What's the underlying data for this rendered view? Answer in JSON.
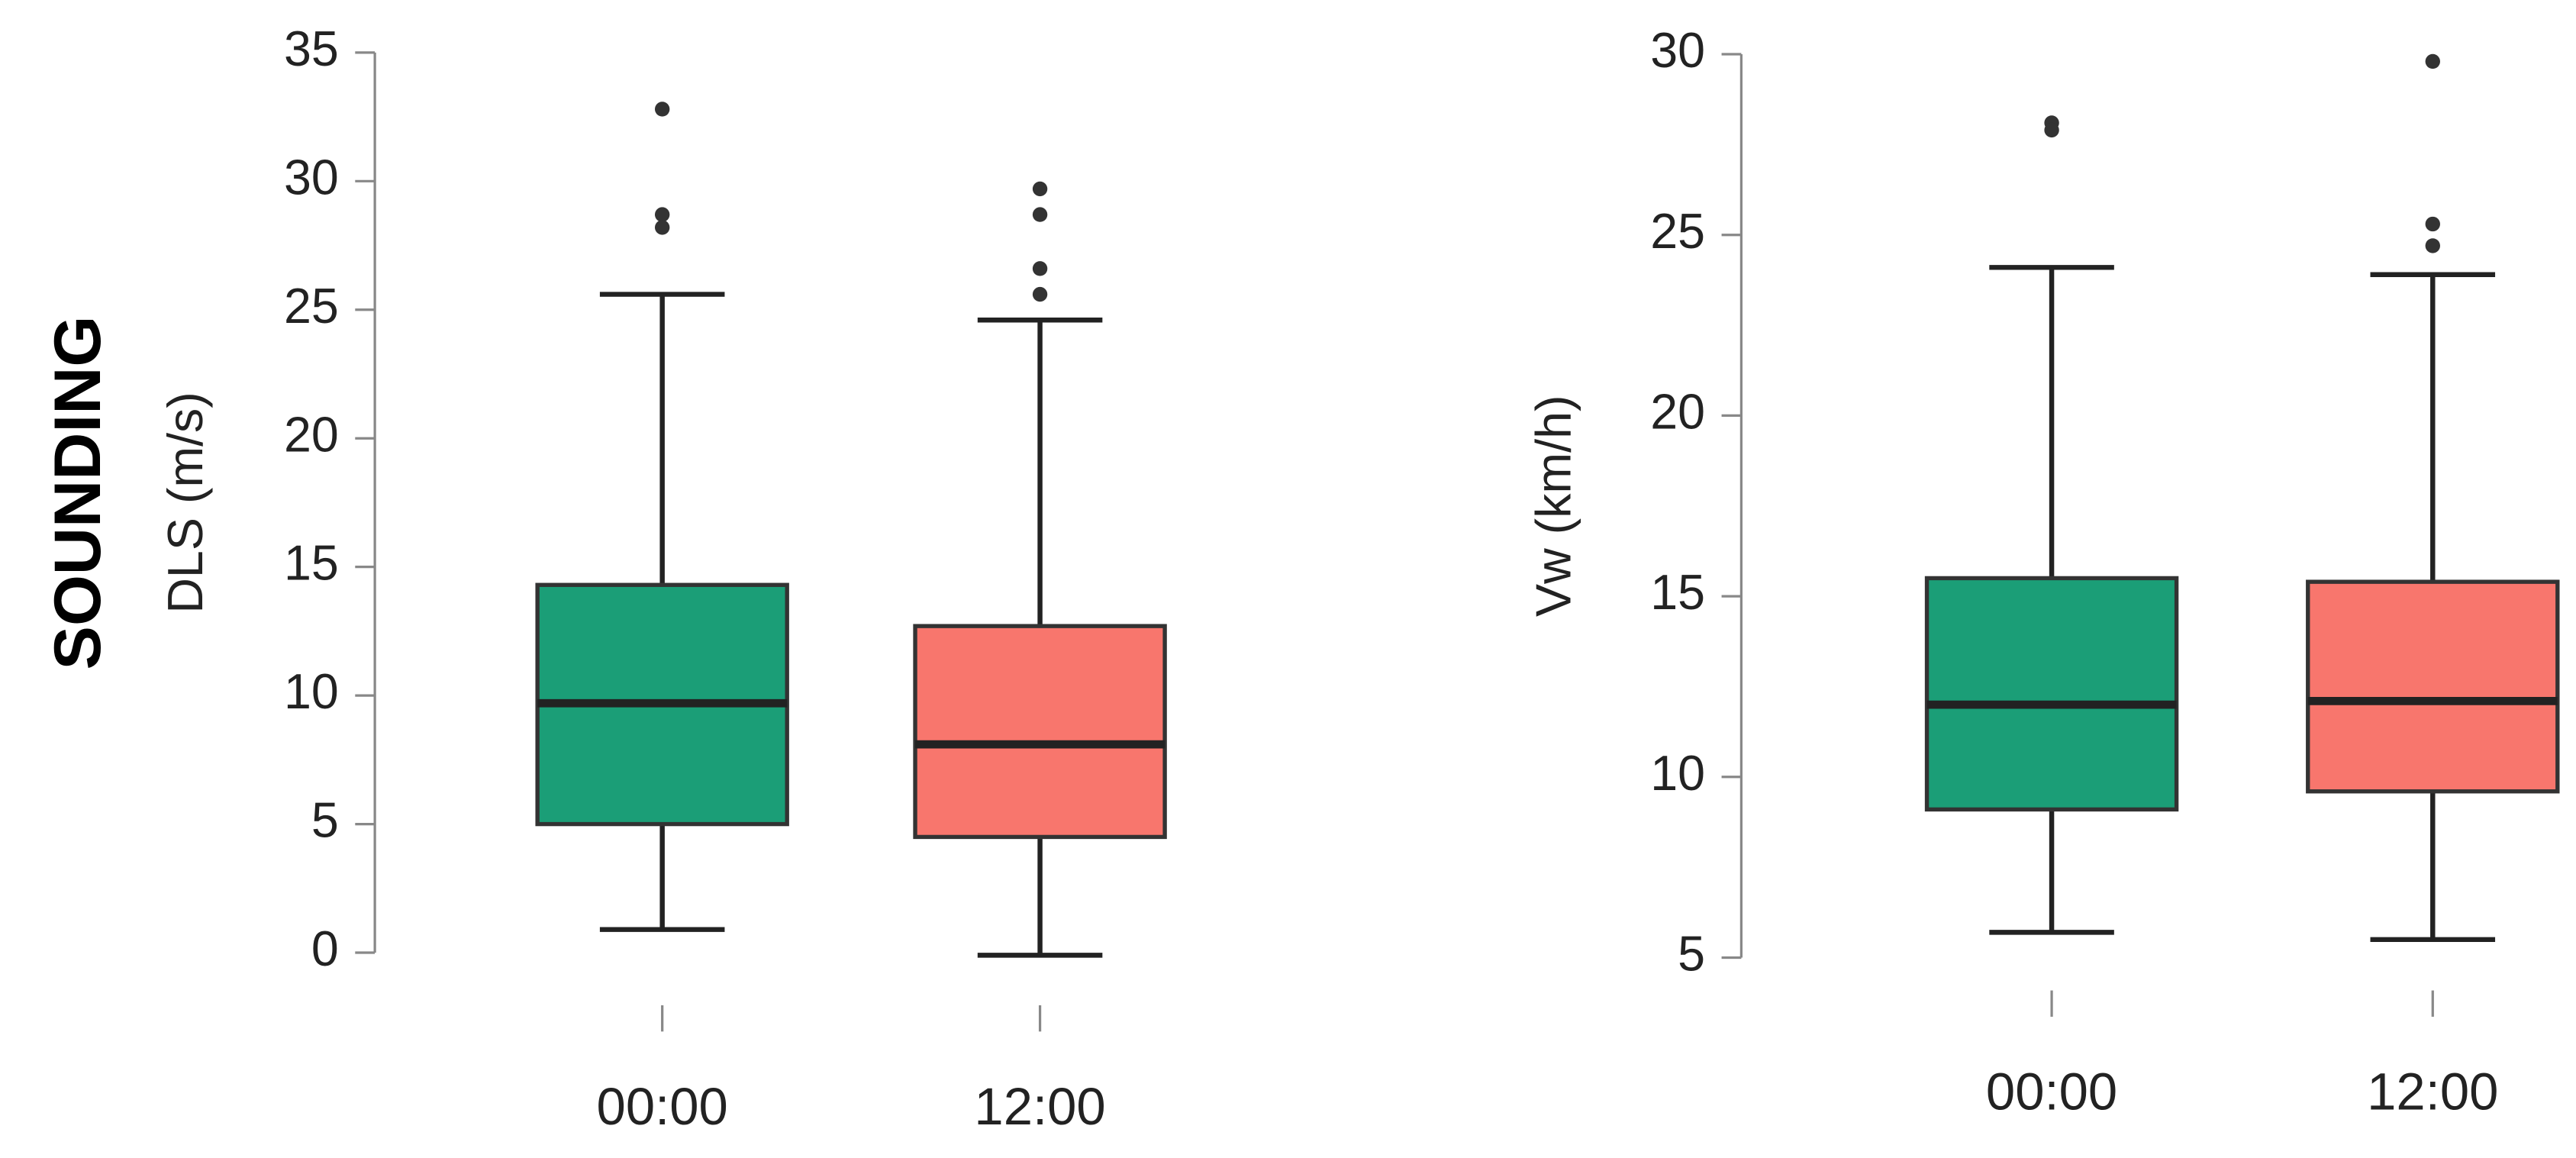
{
  "side_label": "SOUNDING",
  "chart_data": [
    {
      "type": "box",
      "ylabel": "DLS (m/s)",
      "categories": [
        "00:00",
        "12:00"
      ],
      "colors": [
        "#1b9e77",
        "#f8766d"
      ],
      "boxes": [
        {
          "whisker_low": 0.9,
          "q1": 5.0,
          "median": 9.7,
          "q3": 14.3,
          "whisker_high": 25.6,
          "outliers": [
            32.8,
            28.7,
            28.2
          ]
        },
        {
          "whisker_low": -0.1,
          "q1": 4.5,
          "median": 8.1,
          "q3": 12.7,
          "whisker_high": 24.6,
          "outliers": [
            29.7,
            28.7,
            26.6,
            25.6
          ]
        }
      ],
      "ylim": [
        0,
        35
      ],
      "yticks": [
        0,
        5,
        10,
        15,
        20,
        25,
        30,
        35
      ]
    },
    {
      "type": "box",
      "ylabel": "Vw (km/h)",
      "categories": [
        "00:00",
        "12:00"
      ],
      "colors": [
        "#1b9e77",
        "#f8766d"
      ],
      "boxes": [
        {
          "whisker_low": 5.7,
          "q1": 9.1,
          "median": 12.0,
          "q3": 15.5,
          "whisker_high": 24.1,
          "outliers": [
            28.1,
            27.9
          ]
        },
        {
          "whisker_low": 5.5,
          "q1": 9.6,
          "median": 12.1,
          "q3": 15.4,
          "whisker_high": 23.9,
          "outliers": [
            29.8,
            25.3,
            24.7
          ]
        }
      ],
      "ylim": [
        5,
        30
      ],
      "yticks": [
        5,
        10,
        15,
        20,
        25,
        30
      ]
    }
  ]
}
